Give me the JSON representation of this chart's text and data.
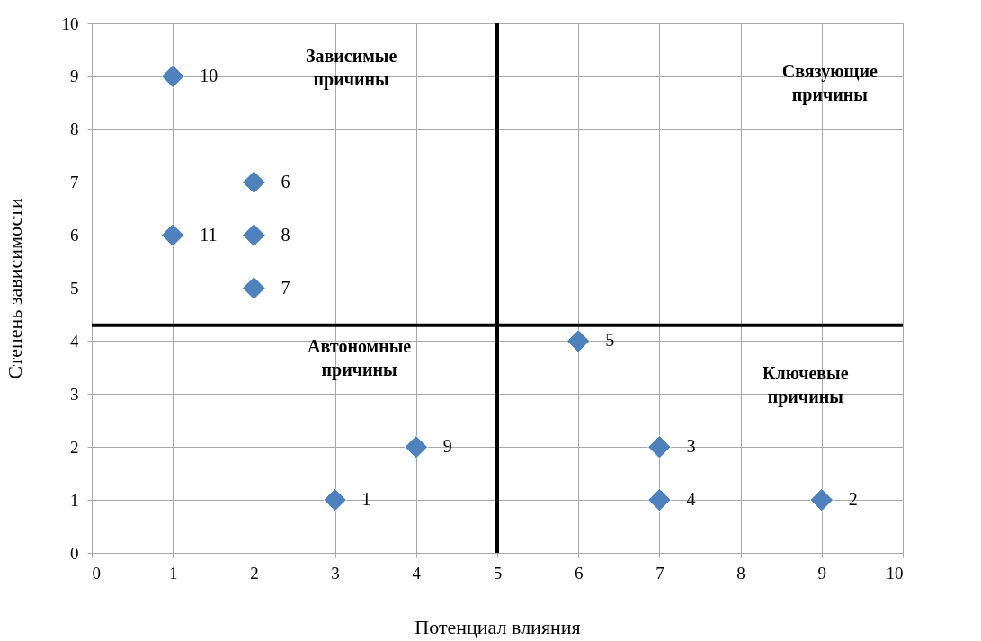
{
  "chart_data": {
    "type": "scatter",
    "xlabel": "Потенциал влияния",
    "ylabel": "Степень зависимости",
    "x": [
      1,
      2,
      1,
      2,
      2,
      6,
      4,
      3,
      7,
      7,
      9
    ],
    "series": [
      {
        "color": "#4f81bd",
        "values": [
          9,
          7,
          6,
          6,
          5,
          4,
          2,
          1,
          2,
          1,
          1
        ]
      }
    ],
    "xlim": [
      0,
      10
    ],
    "ylim": [
      0,
      10
    ],
    "xticks": [
      0,
      1,
      2,
      3,
      4,
      5,
      6,
      7,
      8,
      9,
      10
    ],
    "yticks": [
      0,
      1,
      2,
      3,
      4,
      5,
      6,
      7,
      8,
      9,
      10
    ],
    "ref_lines": [
      {
        "axis": "x",
        "value": 5,
        "color": "#000000"
      },
      {
        "axis": "y",
        "value": 4.3,
        "color": "#000000"
      }
    ],
    "annotations": [
      "Зависимые\nпричины",
      "Связующие\nпричины",
      "Автономные\nпричины",
      "Ключевые\nпричины",
      {
        "text": "10",
        "x": 1,
        "y": 9
      },
      {
        "text": "6",
        "x": 2,
        "y": 7
      },
      {
        "text": "11",
        "x": 1,
        "y": 6
      },
      {
        "text": "8",
        "x": 2,
        "y": 6
      },
      {
        "text": "7",
        "x": 2,
        "y": 5
      },
      {
        "text": "5",
        "x": 6,
        "y": 4
      },
      {
        "text": "9",
        "x": 4,
        "y": 2
      },
      {
        "text": "1",
        "x": 3,
        "y": 1
      },
      {
        "text": "3",
        "x": 7,
        "y": 2
      },
      {
        "text": "4",
        "x": 7,
        "y": 1
      },
      {
        "text": "2",
        "x": 9,
        "y": 1
      }
    ],
    "marker": "diamond",
    "grid": true
  }
}
